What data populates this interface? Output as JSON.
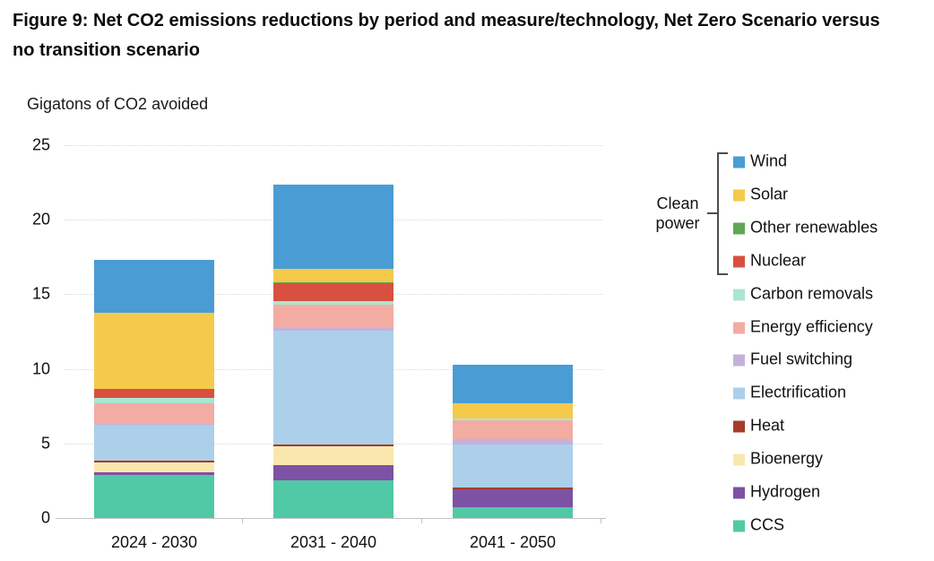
{
  "figure": {
    "title": "Figure 9: Net CO2 emissions reductions by period and measure/technology, Net Zero Scenario versus no transition scenario",
    "units_label": "Gigatons of CO2 avoided"
  },
  "chart_data": {
    "type": "bar",
    "stacked": true,
    "title": "Figure 9: Net CO2 emissions reductions by period and measure/technology, Net Zero Scenario versus no transition scenario",
    "ylabel": "Gigatons of CO2 avoided",
    "xlabel": "",
    "ylim": [
      0,
      25
    ],
    "yticks": [
      0,
      5,
      10,
      15,
      20,
      25
    ],
    "grid": "horizontal-dotted",
    "legend_position": "right",
    "legend_group": {
      "label": "Clean power",
      "members": [
        "Wind",
        "Solar",
        "Other renewables",
        "Nuclear"
      ]
    },
    "categories": [
      "2024 - 2030",
      "2031 - 2040",
      "2041 - 2050"
    ],
    "series": [
      {
        "name": "Wind",
        "color": "#4A9CD4",
        "values": [
          3.55,
          5.65,
          2.6
        ]
      },
      {
        "name": "Solar",
        "color": "#F5C94A",
        "values": [
          5.1,
          0.95,
          1.0
        ]
      },
      {
        "name": "Other renewables",
        "color": "#61A656",
        "values": [
          0.0,
          0.05,
          0.0
        ]
      },
      {
        "name": "Nuclear",
        "color": "#D8503F",
        "values": [
          0.65,
          1.2,
          0.0
        ]
      },
      {
        "name": "Carbon removals",
        "color": "#AAE6D2",
        "values": [
          0.35,
          0.2,
          0.1
        ]
      },
      {
        "name": "Energy efficiency",
        "color": "#F3ACA2",
        "values": [
          1.35,
          1.6,
          1.3
        ]
      },
      {
        "name": "Fuel switching",
        "color": "#C4B2DC",
        "values": [
          0.05,
          0.15,
          0.35
        ]
      },
      {
        "name": "Electrification",
        "color": "#ACCFEA",
        "values": [
          2.45,
          7.65,
          2.85
        ]
      },
      {
        "name": "Heat",
        "color": "#A53B2A",
        "values": [
          0.08,
          0.13,
          0.12
        ]
      },
      {
        "name": "Bioenergy",
        "color": "#FAE7AD",
        "values": [
          0.7,
          1.25,
          0.0
        ]
      },
      {
        "name": "Hydrogen",
        "color": "#7D51A4",
        "values": [
          0.15,
          1.0,
          1.2
        ]
      },
      {
        "name": "CCS",
        "color": "#52C9A6",
        "values": [
          2.9,
          2.55,
          0.75
        ]
      }
    ]
  }
}
